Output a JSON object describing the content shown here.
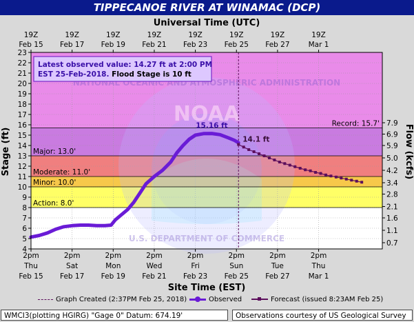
{
  "title": "TIPPECANOE RIVER AT WINAMAC (DCP)",
  "top_axis_title": "Universal Time (UTC)",
  "bottom_axis_title": "Site Time (EST)",
  "y_left_title": "Stage (ft)",
  "y_right_title": "Flow (kcfs)",
  "annotation_box": {
    "line1": "Latest observed value: 14.27 ft at 2:00 PM",
    "line2_prefix": "EST 25-Feb-2018.",
    "line2_suffix": "Flood Stage is 10 ft"
  },
  "peak_label": "15.16 ft",
  "forecast_label": "14.1 ft",
  "watermark_top": "NATIONAL OCEANIC AND ATMOSPHERIC ADMINISTRATION",
  "watermark_bottom": "U.S. DEPARTMENT OF COMMERCE",
  "watermark_center": "NOAA",
  "legend": {
    "graph_created": "Graph Created (2:37PM Feb 25, 2018)",
    "observed": "Observed",
    "forecast": "Forecast (issued 8:23AM Feb 25)"
  },
  "footer": {
    "left": "WMCI3(plotting HGIRG) \"Gage 0\" Datum: 674.19'",
    "right": "Observations courtesy of US Geological Survey"
  },
  "colors": {
    "record_zone": "#e98be9",
    "major_zone": "#c97be0",
    "moderate_zone": "#f07f7f",
    "minor_zone": "#f7c84a",
    "action_zone": "#ffff66",
    "normal_zone": "#ffffff",
    "observed": "#6a1bd6",
    "forecast": "#5c0f5c",
    "title_bg": "#0a1a8c"
  },
  "chart_data": {
    "type": "line",
    "x_unit": "day (Feb 2018, local time)",
    "xlim": [
      15.5,
      32.6
    ],
    "ylim": [
      4,
      23
    ],
    "y_ticks_left": [
      4,
      5,
      6,
      7,
      8,
      9,
      10,
      11,
      12,
      13,
      14,
      15,
      16,
      17,
      18,
      19,
      20,
      21,
      22,
      23
    ],
    "y_ticks_right": [
      {
        "stage": 4.6,
        "label": "0.7"
      },
      {
        "stage": 5.8,
        "label": "1.1"
      },
      {
        "stage": 7.0,
        "label": "1.6"
      },
      {
        "stage": 8.1,
        "label": "2.1"
      },
      {
        "stage": 9.3,
        "label": "2.8"
      },
      {
        "stage": 10.4,
        "label": "3.4"
      },
      {
        "stage": 11.6,
        "label": "4.2"
      },
      {
        "stage": 12.8,
        "label": "5.0"
      },
      {
        "stage": 14.0,
        "label": "5.9"
      },
      {
        "stage": 15.1,
        "label": "6.9"
      },
      {
        "stage": 16.2,
        "label": "7.9"
      }
    ],
    "top_ticks": [
      {
        "x": 15.5,
        "line1": "19Z",
        "line2": "Feb 15"
      },
      {
        "x": 17.5,
        "line1": "19Z",
        "line2": "Feb 17"
      },
      {
        "x": 19.5,
        "line1": "19Z",
        "line2": "Feb 19"
      },
      {
        "x": 21.5,
        "line1": "19Z",
        "line2": "Feb 21"
      },
      {
        "x": 23.5,
        "line1": "19Z",
        "line2": "Feb 23"
      },
      {
        "x": 25.5,
        "line1": "19Z",
        "line2": "Feb 25"
      },
      {
        "x": 27.5,
        "line1": "19Z",
        "line2": "Feb 27"
      },
      {
        "x": 29.5,
        "line1": "19Z",
        "line2": "Mar  1"
      }
    ],
    "bottom_ticks": [
      {
        "x": 15.5,
        "line1": "2pm",
        "line2": "Thu",
        "line3": "Feb 15"
      },
      {
        "x": 17.5,
        "line1": "2pm",
        "line2": "Sat",
        "line3": "Feb 17"
      },
      {
        "x": 19.5,
        "line1": "2pm",
        "line2": "Mon",
        "line3": "Feb 19"
      },
      {
        "x": 21.5,
        "line1": "2pm",
        "line2": "Wed",
        "line3": "Feb 21"
      },
      {
        "x": 23.5,
        "line1": "2pm",
        "line2": "Fri",
        "line3": "Feb 23"
      },
      {
        "x": 25.5,
        "line1": "2pm",
        "line2": "Sun",
        "line3": "Feb 25"
      },
      {
        "x": 27.5,
        "line1": "2pm",
        "line2": "Tue",
        "line3": "Feb 27"
      },
      {
        "x": 29.5,
        "line1": "2pm",
        "line2": "Thu",
        "line3": "Mar  1"
      }
    ],
    "thresholds": [
      {
        "name": "Record",
        "value": 15.7,
        "label": "Record: 15.7'"
      },
      {
        "name": "Major",
        "value": 13.0,
        "label": "Major: 13.0'"
      },
      {
        "name": "Moderate",
        "value": 11.0,
        "label": "Moderate: 11.0'"
      },
      {
        "name": "Minor",
        "value": 10.0,
        "label": "Minor: 10.0'"
      },
      {
        "name": "Action",
        "value": 8.0,
        "label": "Action: 8.0'"
      }
    ],
    "graph_created_x": 25.6,
    "series": [
      {
        "name": "Observed",
        "points": [
          [
            15.5,
            5.15
          ],
          [
            15.9,
            5.3
          ],
          [
            16.3,
            5.55
          ],
          [
            16.7,
            5.9
          ],
          [
            17.1,
            6.15
          ],
          [
            17.5,
            6.25
          ],
          [
            17.9,
            6.3
          ],
          [
            18.3,
            6.3
          ],
          [
            18.7,
            6.25
          ],
          [
            19.1,
            6.25
          ],
          [
            19.4,
            6.3
          ],
          [
            19.6,
            6.8
          ],
          [
            19.9,
            7.3
          ],
          [
            20.2,
            7.8
          ],
          [
            20.5,
            8.5
          ],
          [
            20.8,
            9.4
          ],
          [
            21.1,
            10.3
          ],
          [
            21.5,
            11.0
          ],
          [
            21.9,
            11.6
          ],
          [
            22.3,
            12.4
          ],
          [
            22.6,
            13.3
          ],
          [
            22.9,
            14.0
          ],
          [
            23.2,
            14.6
          ],
          [
            23.5,
            15.0
          ],
          [
            23.9,
            15.15
          ],
          [
            24.3,
            15.16
          ],
          [
            24.7,
            15.05
          ],
          [
            25.1,
            14.75
          ],
          [
            25.4,
            14.5
          ],
          [
            25.6,
            14.27
          ]
        ]
      },
      {
        "name": "Forecast",
        "points": [
          [
            25.6,
            14.1
          ],
          [
            25.85,
            13.85
          ],
          [
            26.1,
            13.6
          ],
          [
            26.35,
            13.4
          ],
          [
            26.6,
            13.2
          ],
          [
            26.85,
            13.0
          ],
          [
            27.1,
            12.8
          ],
          [
            27.35,
            12.6
          ],
          [
            27.6,
            12.4
          ],
          [
            27.85,
            12.25
          ],
          [
            28.1,
            12.1
          ],
          [
            28.35,
            11.95
          ],
          [
            28.6,
            11.8
          ],
          [
            28.85,
            11.65
          ],
          [
            29.1,
            11.55
          ],
          [
            29.35,
            11.4
          ],
          [
            29.6,
            11.3
          ],
          [
            29.85,
            11.15
          ],
          [
            30.1,
            11.05
          ],
          [
            30.35,
            10.95
          ],
          [
            30.6,
            10.85
          ],
          [
            30.85,
            10.75
          ],
          [
            31.1,
            10.65
          ],
          [
            31.35,
            10.55
          ],
          [
            31.6,
            10.45
          ]
        ]
      }
    ],
    "peak_point": [
      24.3,
      15.16
    ],
    "forecast_start_point": [
      25.6,
      14.1
    ]
  }
}
